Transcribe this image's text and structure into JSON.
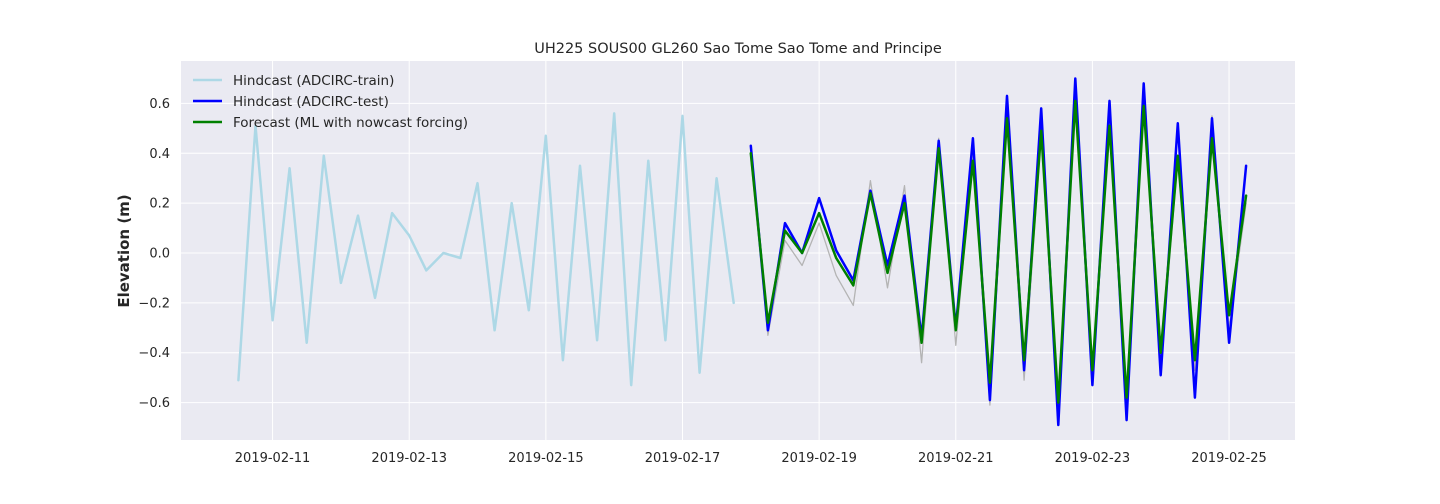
{
  "chart_data": {
    "type": "line",
    "title": "UH225 SOUS00 GL260 Sao Tome Sao Tome and Principe",
    "xlabel": "",
    "ylabel": "Elevation (m)",
    "xlim": [
      "2019-02-09T15:50",
      "2019-02-25T23:10"
    ],
    "ylim": [
      -0.75,
      0.77
    ],
    "x_ticks": [
      "2019-02-11",
      "2019-02-13",
      "2019-02-15",
      "2019-02-17",
      "2019-02-19",
      "2019-02-21",
      "2019-02-23",
      "2019-02-25"
    ],
    "y_ticks": [
      -0.6,
      -0.4,
      -0.2,
      0.0,
      0.2,
      0.4,
      0.6
    ],
    "y_tick_labels": [
      "−0.6",
      "−0.4",
      "−0.2",
      "0.0",
      "0.2",
      "0.4",
      "0.6"
    ],
    "grid": true,
    "legend_position": "top-left",
    "background_color": "#eaeaf2",
    "series": [
      {
        "name": "Hindcast (ADCIRC-train)",
        "color": "#add8e6",
        "width": 2.5,
        "legend": true,
        "x": [
          "2019-02-10T12:00",
          "2019-02-10T18:00",
          "2019-02-11T00:00",
          "2019-02-11T06:00",
          "2019-02-11T12:00",
          "2019-02-11T18:00",
          "2019-02-12T00:00",
          "2019-02-12T06:00",
          "2019-02-12T12:00",
          "2019-02-12T18:00",
          "2019-02-13T00:00",
          "2019-02-13T06:00",
          "2019-02-13T12:00",
          "2019-02-13T18:00",
          "2019-02-14T00:00",
          "2019-02-14T06:00",
          "2019-02-14T12:00",
          "2019-02-14T18:00",
          "2019-02-15T00:00",
          "2019-02-15T06:00",
          "2019-02-15T12:00",
          "2019-02-15T18:00",
          "2019-02-16T00:00",
          "2019-02-16T06:00",
          "2019-02-16T12:00",
          "2019-02-16T18:00",
          "2019-02-17T00:00",
          "2019-02-17T06:00",
          "2019-02-17T12:00",
          "2019-02-17T18:00"
        ],
        "y": [
          -0.51,
          0.51,
          -0.27,
          0.34,
          -0.36,
          0.39,
          -0.12,
          0.15,
          -0.18,
          0.16,
          0.07,
          -0.07,
          0.0,
          -0.02,
          0.28,
          -0.31,
          0.2,
          -0.23,
          0.47,
          -0.43,
          0.35,
          -0.35,
          0.56,
          -0.53,
          0.37,
          -0.35,
          0.55,
          -0.48,
          0.3,
          -0.2
        ]
      },
      {
        "name": "",
        "color": "#b4b4b4",
        "width": 1.3,
        "legend": false,
        "x": [
          "2019-02-18T00:00",
          "2019-02-18T06:00",
          "2019-02-18T12:00",
          "2019-02-18T18:00",
          "2019-02-19T00:00",
          "2019-02-19T06:00",
          "2019-02-19T12:00",
          "2019-02-19T18:00",
          "2019-02-20T00:00",
          "2019-02-20T06:00",
          "2019-02-20T12:00",
          "2019-02-20T18:00",
          "2019-02-21T00:00",
          "2019-02-21T06:00",
          "2019-02-21T12:00",
          "2019-02-21T18:00",
          "2019-02-22T00:00",
          "2019-02-22T06:00",
          "2019-02-22T12:00",
          "2019-02-22T18:00",
          "2019-02-23T00:00",
          "2019-02-23T06:00",
          "2019-02-23T12:00",
          "2019-02-23T18:00",
          "2019-02-24T00:00",
          "2019-02-24T06:00",
          "2019-02-24T12:00",
          "2019-02-24T18:00",
          "2019-02-25T00:00",
          "2019-02-25T06:00"
        ],
        "y": [
          0.38,
          -0.33,
          0.05,
          -0.05,
          0.12,
          -0.09,
          -0.21,
          0.29,
          -0.14,
          0.27,
          -0.44,
          0.46,
          -0.37,
          0.4,
          -0.61,
          0.56,
          -0.51,
          0.48,
          -0.62,
          0.62,
          -0.5,
          0.5,
          -0.59,
          0.62,
          -0.46,
          0.38,
          -0.47,
          0.55,
          -0.3,
          0.2
        ]
      },
      {
        "name": "Hindcast (ADCIRC-test)",
        "color": "#0000ff",
        "width": 2.5,
        "legend": true,
        "x": [
          "2019-02-18T00:00",
          "2019-02-18T06:00",
          "2019-02-18T12:00",
          "2019-02-18T18:00",
          "2019-02-19T00:00",
          "2019-02-19T06:00",
          "2019-02-19T12:00",
          "2019-02-19T18:00",
          "2019-02-20T00:00",
          "2019-02-20T06:00",
          "2019-02-20T12:00",
          "2019-02-20T18:00",
          "2019-02-21T00:00",
          "2019-02-21T06:00",
          "2019-02-21T12:00",
          "2019-02-21T18:00",
          "2019-02-22T00:00",
          "2019-02-22T06:00",
          "2019-02-22T12:00",
          "2019-02-22T18:00",
          "2019-02-23T00:00",
          "2019-02-23T06:00",
          "2019-02-23T12:00",
          "2019-02-23T18:00",
          "2019-02-24T00:00",
          "2019-02-24T06:00",
          "2019-02-24T12:00",
          "2019-02-24T18:00",
          "2019-02-25T00:00",
          "2019-02-25T06:00"
        ],
        "y": [
          0.43,
          -0.31,
          0.12,
          0.0,
          0.22,
          0.01,
          -0.11,
          0.25,
          -0.05,
          0.23,
          -0.34,
          0.45,
          -0.3,
          0.46,
          -0.59,
          0.63,
          -0.47,
          0.58,
          -0.69,
          0.7,
          -0.53,
          0.61,
          -0.67,
          0.68,
          -0.49,
          0.52,
          -0.58,
          0.54,
          -0.36,
          0.35
        ]
      },
      {
        "name": "Forecast (ML with nowcast forcing)",
        "color": "#008000",
        "width": 2.5,
        "legend": true,
        "x": [
          "2019-02-18T00:00",
          "2019-02-18T06:00",
          "2019-02-18T12:00",
          "2019-02-18T18:00",
          "2019-02-19T00:00",
          "2019-02-19T06:00",
          "2019-02-19T12:00",
          "2019-02-19T18:00",
          "2019-02-20T00:00",
          "2019-02-20T06:00",
          "2019-02-20T12:00",
          "2019-02-20T18:00",
          "2019-02-21T00:00",
          "2019-02-21T06:00",
          "2019-02-21T12:00",
          "2019-02-21T18:00",
          "2019-02-22T00:00",
          "2019-02-22T06:00",
          "2019-02-22T12:00",
          "2019-02-22T18:00",
          "2019-02-23T00:00",
          "2019-02-23T06:00",
          "2019-02-23T12:00",
          "2019-02-23T18:00",
          "2019-02-24T00:00",
          "2019-02-24T06:00",
          "2019-02-24T12:00",
          "2019-02-24T18:00",
          "2019-02-25T00:00",
          "2019-02-25T06:00"
        ],
        "y": [
          0.4,
          -0.28,
          0.09,
          0.0,
          0.16,
          -0.02,
          -0.13,
          0.24,
          -0.08,
          0.2,
          -0.36,
          0.42,
          -0.31,
          0.37,
          -0.52,
          0.54,
          -0.43,
          0.49,
          -0.6,
          0.61,
          -0.47,
          0.51,
          -0.58,
          0.59,
          -0.4,
          0.39,
          -0.43,
          0.46,
          -0.25,
          0.23
        ]
      }
    ]
  }
}
